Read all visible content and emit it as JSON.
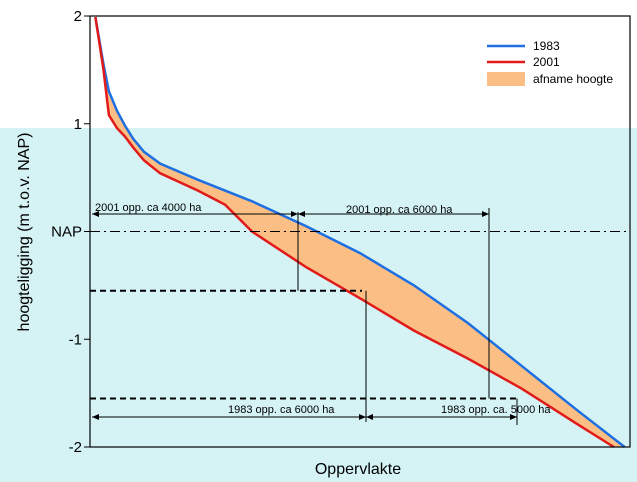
{
  "colors": {
    "background_band": "#d5f3f5",
    "line_1983": "#1e6fe0",
    "line_2001": "#e11a1a",
    "fill_decrease": "#fbbf85"
  },
  "chart_data": {
    "type": "line",
    "xlabel": "Oppervlakte",
    "ylabel": "hoogteligging (m t.o.v. NAP)",
    "ylim": [
      -2,
      2
    ],
    "y_ticks": [
      {
        "value": 2,
        "label": "2"
      },
      {
        "value": 1,
        "label": "1"
      },
      {
        "value": 0,
        "label": "NAP"
      },
      {
        "value": -1,
        "label": "-1"
      },
      {
        "value": -2,
        "label": "-2"
      }
    ],
    "x_ticks": [],
    "series": [
      {
        "name": "1983",
        "color": "#1e6fe0",
        "x": [
          0.01,
          0.025,
          0.035,
          0.05,
          0.065,
          0.08,
          0.1,
          0.13,
          0.2,
          0.3,
          0.4,
          0.5,
          0.6,
          0.7,
          0.8,
          0.9,
          0.99
        ],
        "y": [
          1.99,
          1.55,
          1.3,
          1.12,
          0.98,
          0.86,
          0.74,
          0.63,
          0.48,
          0.28,
          0.05,
          -0.2,
          -0.5,
          -0.85,
          -1.25,
          -1.65,
          -2.0
        ]
      },
      {
        "name": "2001",
        "color": "#e11a1a",
        "x": [
          0.01,
          0.025,
          0.035,
          0.05,
          0.065,
          0.08,
          0.1,
          0.13,
          0.2,
          0.25,
          0.3,
          0.4,
          0.5,
          0.6,
          0.7,
          0.8,
          0.9,
          0.97
        ],
        "y": [
          1.99,
          1.5,
          1.08,
          0.96,
          0.88,
          0.78,
          0.66,
          0.54,
          0.38,
          0.25,
          0.0,
          -0.33,
          -0.62,
          -0.92,
          -1.18,
          -1.46,
          -1.78,
          -2.0
        ]
      }
    ],
    "fill_between": {
      "name": "afname hoogte",
      "color": "#fbbf85"
    },
    "reference_lines": [
      {
        "y": 0,
        "style": "dash-dot"
      },
      {
        "y": -0.55,
        "style": "dashed"
      },
      {
        "y": -1.55,
        "style": "dashed"
      }
    ],
    "annotations": [
      {
        "text": "2001 opp. ca 4000 ha"
      },
      {
        "text": "2001 opp. ca 6000 ha"
      },
      {
        "text": "1983 opp. ca 6000 ha"
      },
      {
        "text": "1983 opp. ca. 5000 ha"
      }
    ],
    "legend_position": "top-right",
    "grid": false
  }
}
